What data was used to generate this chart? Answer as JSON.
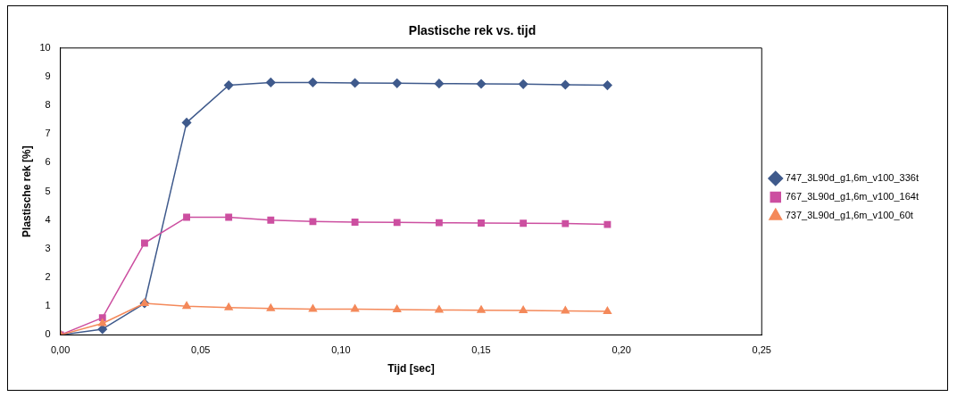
{
  "chart_data": {
    "type": "line",
    "title": "Plastische rek vs. tijd",
    "xlabel": "Tijd [sec]",
    "ylabel": "Plastische rek [%]",
    "x": [
      0,
      0.015,
      0.03,
      0.045,
      0.06,
      0.075,
      0.09,
      0.105,
      0.12,
      0.135,
      0.15,
      0.165,
      0.18,
      0.195
    ],
    "series": [
      {
        "name": "747_3L90d_g1,6m_v100_336t",
        "color": "#3f5a8c",
        "marker": "diamond",
        "values": [
          0,
          0.2,
          1.1,
          7.4,
          8.7,
          8.8,
          8.8,
          8.78,
          8.77,
          8.76,
          8.75,
          8.74,
          8.72,
          8.7
        ]
      },
      {
        "name": "767_3L90d_g1,6m_v100_164t",
        "color": "#cc4fa0",
        "marker": "square",
        "values": [
          0,
          0.6,
          3.2,
          4.1,
          4.1,
          4.0,
          3.95,
          3.93,
          3.92,
          3.91,
          3.9,
          3.89,
          3.88,
          3.85
        ]
      },
      {
        "name": "737_3L90d_g1,6m_v100_60t",
        "color": "#f4895a",
        "marker": "triangle",
        "values": [
          0,
          0.4,
          1.1,
          1.0,
          0.95,
          0.92,
          0.9,
          0.9,
          0.88,
          0.87,
          0.86,
          0.85,
          0.84,
          0.82
        ]
      }
    ],
    "xlim": [
      0,
      0.25
    ],
    "xticks": [
      {
        "value": 0,
        "label": "0,00"
      },
      {
        "value": 0.05,
        "label": "0,05"
      },
      {
        "value": 0.1,
        "label": "0,10"
      },
      {
        "value": 0.15,
        "label": "0,15"
      },
      {
        "value": 0.2,
        "label": "0,20"
      },
      {
        "value": 0.25,
        "label": "0,25"
      }
    ],
    "ylim": [
      0,
      10
    ],
    "yticks": [
      0,
      1,
      2,
      3,
      4,
      5,
      6,
      7,
      8,
      9,
      10
    ],
    "grid": false,
    "legend": "right",
    "line_style": "solid"
  }
}
